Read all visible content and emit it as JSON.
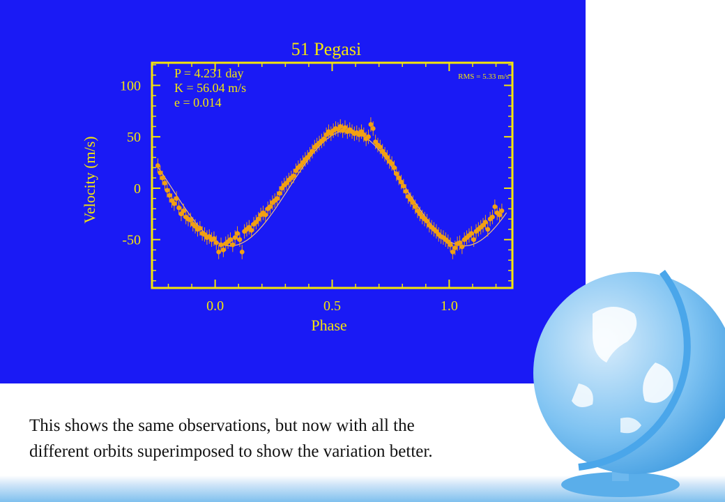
{
  "slide": {
    "caption_lines": [
      "This shows the same observations, but now with all the",
      "different orbits superimposed to show the variation better."
    ],
    "colors": {
      "panel_bg": "#1a1af5",
      "axis": "#f5e60a",
      "text": "#f5e60a",
      "points": "#f2a012",
      "fit": "#f0c080"
    },
    "decoration": "globe-icon"
  },
  "chart_data": {
    "type": "scatter",
    "title": "51 Pegasi",
    "xlabel": "Phase",
    "ylabel": "Velocity (m/s)",
    "xlim": [
      -0.27,
      1.27
    ],
    "ylim": [
      -97,
      122
    ],
    "xticks": [
      0.0,
      0.5,
      1.0
    ],
    "xtick_labels": [
      "0.0",
      "0.5",
      "1.0"
    ],
    "yticks": [
      -50,
      0,
      50,
      100
    ],
    "ytick_labels": [
      "-50",
      "0",
      "50",
      "100"
    ],
    "annotations": {
      "P": "P = 4.231 day",
      "K": "K = 56.04 m/s",
      "e": "e = 0.014",
      "rms": "RMS = 5.33 m/s"
    },
    "fit": {
      "K": 56.04,
      "e": 0.014,
      "peak_phase": 0.565
    },
    "series": [
      {
        "points": [
          [
            -0.245,
            22
          ],
          [
            -0.235,
            15
          ],
          [
            -0.225,
            10
          ],
          [
            -0.215,
            5
          ],
          [
            -0.205,
            -2
          ],
          [
            -0.195,
            -7
          ],
          [
            -0.185,
            -12
          ],
          [
            -0.175,
            -15
          ],
          [
            -0.165,
            -10
          ],
          [
            -0.155,
            -19
          ],
          [
            -0.145,
            -25
          ],
          [
            -0.135,
            -22
          ],
          [
            -0.125,
            -28
          ],
          [
            -0.115,
            -30
          ],
          [
            -0.105,
            -31
          ],
          [
            -0.095,
            -35
          ],
          [
            -0.085,
            -37
          ],
          [
            -0.075,
            -40
          ],
          [
            -0.065,
            -39
          ],
          [
            -0.055,
            -44
          ],
          [
            -0.045,
            -45
          ],
          [
            -0.035,
            -48
          ],
          [
            -0.025,
            -47
          ],
          [
            -0.015,
            -50
          ],
          [
            -0.005,
            -49
          ],
          [
            0.005,
            -53
          ],
          [
            0.015,
            -62
          ],
          [
            0.025,
            -55
          ],
          [
            0.035,
            -60
          ],
          [
            0.045,
            -54
          ],
          [
            0.055,
            -52
          ],
          [
            0.065,
            -50
          ],
          [
            0.075,
            -55
          ],
          [
            0.085,
            -48
          ],
          [
            0.095,
            -44
          ],
          [
            0.105,
            -50
          ],
          [
            0.115,
            -62
          ],
          [
            0.125,
            -42
          ],
          [
            0.135,
            -40
          ],
          [
            0.145,
            -38
          ],
          [
            0.155,
            -41
          ],
          [
            0.165,
            -35
          ],
          [
            0.175,
            -33
          ],
          [
            0.185,
            -30
          ],
          [
            0.195,
            -26
          ],
          [
            0.205,
            -24
          ],
          [
            0.215,
            -26
          ],
          [
            0.225,
            -20
          ],
          [
            0.235,
            -18
          ],
          [
            0.245,
            -14
          ],
          [
            0.255,
            -12
          ],
          [
            0.265,
            -10
          ],
          [
            0.275,
            -5
          ],
          [
            0.285,
            0
          ],
          [
            0.295,
            3
          ],
          [
            0.305,
            5
          ],
          [
            0.315,
            8
          ],
          [
            0.325,
            10
          ],
          [
            0.335,
            12
          ],
          [
            0.345,
            17
          ],
          [
            0.355,
            20
          ],
          [
            0.365,
            22
          ],
          [
            0.375,
            25
          ],
          [
            0.385,
            28
          ],
          [
            0.395,
            30
          ],
          [
            0.405,
            33
          ],
          [
            0.415,
            36
          ],
          [
            0.425,
            40
          ],
          [
            0.435,
            42
          ],
          [
            0.445,
            44
          ],
          [
            0.455,
            46
          ],
          [
            0.465,
            48
          ],
          [
            0.475,
            52
          ],
          [
            0.485,
            55
          ],
          [
            0.495,
            53
          ],
          [
            0.505,
            56
          ],
          [
            0.515,
            58
          ],
          [
            0.525,
            57
          ],
          [
            0.535,
            60
          ],
          [
            0.545,
            56
          ],
          [
            0.555,
            59
          ],
          [
            0.565,
            55
          ],
          [
            0.575,
            57
          ],
          [
            0.585,
            55
          ],
          [
            0.595,
            53
          ],
          [
            0.605,
            54
          ],
          [
            0.615,
            52
          ],
          [
            0.625,
            55
          ],
          [
            0.635,
            52
          ],
          [
            0.645,
            48
          ],
          [
            0.655,
            50
          ],
          [
            0.665,
            62
          ],
          [
            0.675,
            58
          ],
          [
            0.685,
            45
          ],
          [
            0.695,
            42
          ],
          [
            0.705,
            40
          ],
          [
            0.715,
            36
          ],
          [
            0.725,
            33
          ],
          [
            0.735,
            30
          ],
          [
            0.745,
            26
          ],
          [
            0.755,
            24
          ],
          [
            0.765,
            20
          ],
          [
            0.775,
            14
          ],
          [
            0.785,
            10
          ],
          [
            0.795,
            6
          ],
          [
            0.805,
            2
          ],
          [
            0.815,
            -3
          ],
          [
            0.825,
            -8
          ],
          [
            0.835,
            -11
          ],
          [
            0.845,
            -14
          ],
          [
            0.855,
            -18
          ],
          [
            0.865,
            -22
          ],
          [
            0.875,
            -25
          ],
          [
            0.885,
            -28
          ],
          [
            0.895,
            -30
          ],
          [
            0.905,
            -32
          ],
          [
            0.915,
            -36
          ],
          [
            0.925,
            -38
          ],
          [
            0.935,
            -40
          ],
          [
            0.945,
            -42
          ],
          [
            0.955,
            -45
          ],
          [
            0.965,
            -47
          ],
          [
            0.975,
            -48
          ],
          [
            0.985,
            -50
          ],
          [
            0.995,
            -52
          ],
          [
            1.005,
            -55
          ],
          [
            1.015,
            -62
          ],
          [
            1.025,
            -58
          ],
          [
            1.035,
            -54
          ],
          [
            1.045,
            -53
          ],
          [
            1.055,
            -57
          ],
          [
            1.065,
            -50
          ],
          [
            1.075,
            -48
          ],
          [
            1.085,
            -46
          ],
          [
            1.095,
            -44
          ],
          [
            1.105,
            -50
          ],
          [
            1.115,
            -42
          ],
          [
            1.125,
            -40
          ],
          [
            1.135,
            -38
          ],
          [
            1.145,
            -36
          ],
          [
            1.155,
            -33
          ],
          [
            1.165,
            -40
          ],
          [
            1.175,
            -30
          ],
          [
            1.185,
            -28
          ],
          [
            1.195,
            -18
          ],
          [
            1.205,
            -24
          ],
          [
            1.215,
            -26
          ],
          [
            1.225,
            -22
          ]
        ]
      }
    ]
  }
}
